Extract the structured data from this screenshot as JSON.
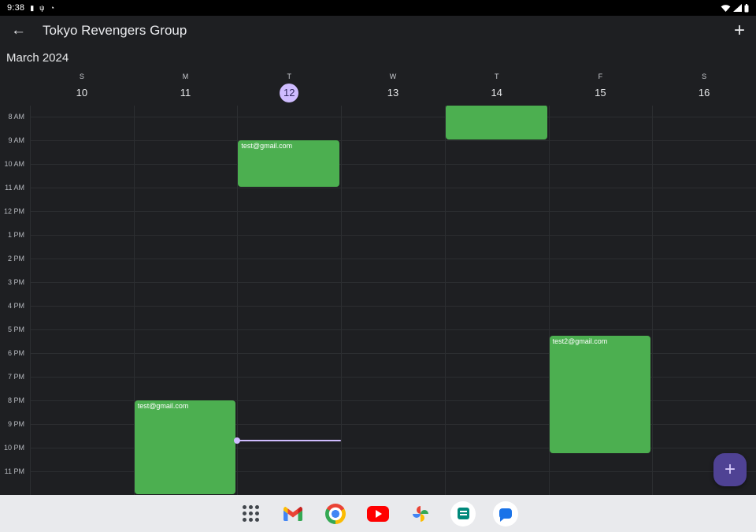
{
  "status_bar": {
    "time": "9:38",
    "left_icons": [
      "▮",
      "ψ",
      "◔"
    ],
    "right_icon_names": [
      "wifi-icon",
      "cell-signal-icon",
      "battery-icon"
    ]
  },
  "icons": {
    "back": "←",
    "add": "+",
    "fab_plus": "+"
  },
  "app_bar": {
    "title": "Tokyo Revengers Group"
  },
  "calendar": {
    "month_label": "March 2024",
    "view": "week",
    "first_visible_hour": 8,
    "days": [
      {
        "letter": "S",
        "number": "10",
        "today": false
      },
      {
        "letter": "M",
        "number": "11",
        "today": false
      },
      {
        "letter": "T",
        "number": "12",
        "today": true
      },
      {
        "letter": "W",
        "number": "13",
        "today": false
      },
      {
        "letter": "T",
        "number": "14",
        "today": false
      },
      {
        "letter": "F",
        "number": "15",
        "today": false
      },
      {
        "letter": "S",
        "number": "16",
        "today": false
      }
    ],
    "hour_labels": [
      "8 AM",
      "9 AM",
      "10 AM",
      "11 AM",
      "12 PM",
      "1 PM",
      "2 PM",
      "3 PM",
      "4 PM",
      "5 PM",
      "6 PM",
      "7 PM",
      "8 PM",
      "9 PM",
      "10 PM",
      "11 PM"
    ],
    "events": [
      {
        "title": "",
        "day": 4,
        "start": 7.5,
        "end": 9
      },
      {
        "title": "test@gmail.com",
        "day": 2,
        "start": 9,
        "end": 11
      },
      {
        "title": "test2@gmail.com",
        "day": 5,
        "start": 17.25,
        "end": 22.25
      },
      {
        "title": "test@gmail.com",
        "day": 1,
        "start": 20,
        "end": 24
      }
    ],
    "now_indicator": {
      "day": 2,
      "time": 21.7
    },
    "colors": {
      "event": "#4caf50",
      "accent": "#cfbcff",
      "fab": "#4f4294"
    }
  },
  "taskbar": {
    "apps": [
      "app-grid",
      "gmail",
      "chrome",
      "youtube",
      "photos",
      "notes",
      "messages"
    ]
  }
}
